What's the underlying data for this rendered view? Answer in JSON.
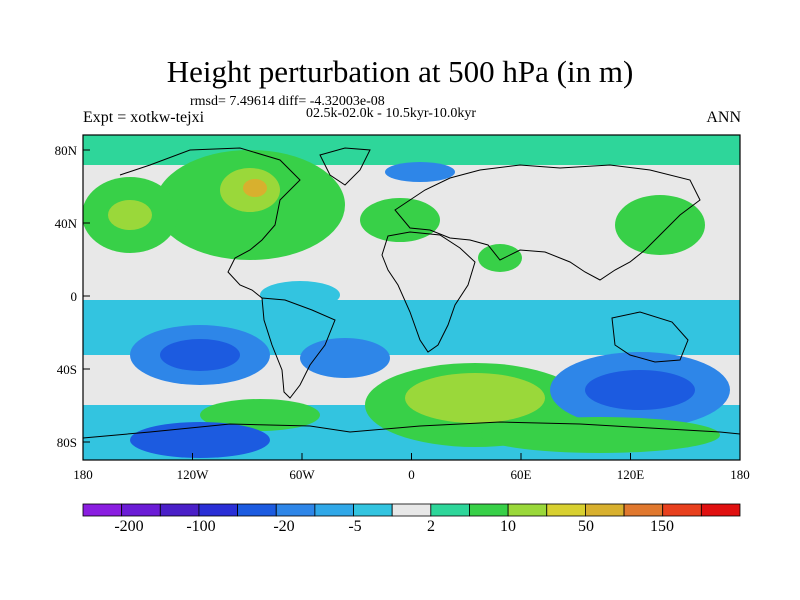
{
  "title": "Height perturbation at 500 hPa (in m)",
  "stats": "rmsd= 7.49614 diff= -4.32003e-08",
  "left_label": "Expt = xotkw-tejxi",
  "center_label": "02.5k-02.0k - 10.5kyr-10.0kyr",
  "right_label": "ANN",
  "lat_ticks": [
    "80N",
    "40N",
    "0",
    "40S",
    "80S"
  ],
  "lon_ticks": [
    "180",
    "120W",
    "60W",
    "0",
    "60E",
    "120E",
    "180"
  ],
  "colorbar": {
    "colors": [
      "#8a1ee0",
      "#6b1cd6",
      "#4a1fc8",
      "#2a2fd6",
      "#1c5be0",
      "#2e86e8",
      "#30a8e8",
      "#33c4e0",
      "#e8e8e8",
      "#2ed69a",
      "#38d048",
      "#9ad83a",
      "#d8d030",
      "#d8b02e",
      "#e0782e",
      "#e8401e",
      "#e01010"
    ],
    "labels": [
      "-200",
      "-100",
      "-20",
      "-5",
      "2",
      "10",
      "50",
      "150"
    ]
  },
  "palette": {
    "neutral": "#e8e8e8",
    "deep_neg": "#1c5be0",
    "mid_neg": "#2e86e8",
    "light_neg": "#33c4e0",
    "light_pos": "#2ed69a",
    "mid_pos": "#38d048",
    "yellow_green": "#9ad83a",
    "yellow": "#d8d030",
    "orange": "#d8b02e"
  }
}
